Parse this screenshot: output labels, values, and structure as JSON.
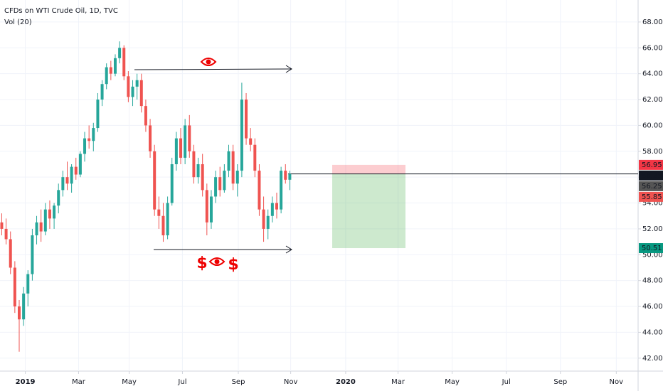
{
  "chart_data": {
    "type": "candlestick",
    "title": "CFDs on WTI Crude Oil, 1D, TVC",
    "subtitle": "Vol (20)",
    "up_color": "#26a69a",
    "down_color": "#ef5350",
    "x": [
      2,
      7,
      12,
      17,
      22,
      27,
      32,
      37,
      42,
      47,
      52,
      57,
      62,
      67,
      72,
      77,
      82,
      87,
      92,
      97,
      102,
      107,
      112,
      117,
      122,
      127,
      132,
      137,
      142,
      147,
      152,
      157,
      162,
      167,
      172,
      177,
      182,
      187,
      192,
      197,
      202,
      207,
      212,
      217,
      222,
      227,
      232,
      237,
      242,
      247,
      252,
      257,
      262,
      267,
      272,
      277,
      282,
      287,
      292,
      297,
      302,
      307,
      312,
      317,
      322,
      327,
      332
    ],
    "open": [
      52.5,
      52.0,
      51.2,
      49.0,
      46.0,
      45.0,
      47.0,
      48.5,
      51.5,
      52.5,
      51.8,
      53.5,
      52.8,
      53.8,
      55.0,
      56.0,
      55.5,
      56.8,
      56.2,
      57.8,
      59.0,
      58.8,
      59.8,
      62.0,
      63.2,
      64.5,
      64.0,
      65.2,
      66.0,
      63.8,
      62.2,
      63.0,
      63.5,
      61.5,
      60.0,
      58.0,
      53.5,
      53.0,
      51.5,
      54.0,
      57.0,
      59.0,
      57.5,
      60.0,
      58.0,
      56.0,
      57.0,
      55.0,
      52.5,
      54.5,
      56.0,
      55.0,
      56.5,
      58.0,
      55.5,
      56.5,
      62.0,
      59.0,
      58.5,
      56.5,
      53.5,
      52.0,
      53.0,
      54.0,
      53.5,
      56.5,
      55.8
    ],
    "high": [
      53.2,
      52.8,
      51.8,
      49.5,
      46.5,
      47.5,
      48.8,
      52.0,
      53.0,
      53.5,
      54.0,
      54.2,
      54.0,
      55.5,
      56.5,
      57.2,
      57.0,
      57.5,
      58.0,
      59.5,
      60.0,
      60.2,
      62.5,
      63.5,
      64.8,
      65.0,
      65.5,
      66.5,
      66.2,
      64.2,
      63.5,
      64.0,
      64.0,
      62.0,
      60.5,
      58.5,
      54.5,
      54.0,
      54.5,
      57.5,
      59.5,
      59.8,
      60.5,
      60.8,
      58.5,
      57.5,
      57.8,
      55.5,
      55.0,
      56.5,
      56.8,
      57.0,
      58.5,
      58.5,
      57.0,
      63.3,
      62.5,
      59.8,
      59.0,
      57.0,
      54.5,
      53.5,
      54.5,
      54.8,
      56.8,
      57.0,
      56.5
    ],
    "low": [
      51.5,
      50.8,
      48.5,
      45.5,
      42.5,
      44.5,
      46.0,
      48.0,
      50.8,
      51.0,
      51.5,
      52.0,
      52.0,
      53.2,
      54.5,
      55.0,
      54.8,
      55.8,
      56.0,
      57.2,
      58.2,
      58.0,
      59.5,
      61.5,
      62.8,
      63.5,
      63.8,
      64.8,
      63.5,
      61.8,
      61.5,
      62.0,
      61.0,
      59.5,
      57.5,
      53.0,
      52.0,
      51.0,
      51.2,
      53.8,
      56.5,
      57.0,
      57.0,
      57.5,
      55.5,
      55.5,
      54.5,
      51.5,
      52.0,
      54.0,
      54.5,
      54.8,
      56.0,
      55.0,
      54.5,
      56.0,
      58.5,
      58.0,
      56.0,
      53.0,
      51.0,
      51.2,
      52.5,
      52.8,
      53.2,
      55.5,
      55.0
    ],
    "close": [
      52.0,
      51.2,
      49.0,
      46.0,
      45.0,
      47.0,
      48.5,
      51.5,
      52.5,
      51.8,
      53.5,
      52.8,
      53.8,
      55.0,
      56.0,
      55.5,
      56.8,
      56.2,
      57.8,
      59.0,
      58.8,
      59.8,
      62.0,
      63.2,
      64.5,
      64.0,
      65.2,
      66.0,
      63.8,
      62.2,
      63.0,
      63.5,
      61.5,
      60.0,
      58.0,
      53.5,
      53.0,
      51.5,
      54.0,
      57.0,
      59.0,
      57.5,
      60.0,
      58.0,
      56.0,
      57.0,
      55.0,
      52.5,
      54.5,
      56.0,
      55.0,
      56.5,
      58.0,
      55.5,
      56.5,
      62.0,
      59.0,
      58.5,
      56.5,
      53.5,
      52.0,
      53.0,
      54.0,
      53.5,
      56.5,
      55.8,
      56.25
    ],
    "xlim": [
      0,
      731
    ],
    "xticks": [
      {
        "value": 29,
        "label": "2019"
      },
      {
        "value": 90,
        "label": "Mar"
      },
      {
        "value": 148,
        "label": "May"
      },
      {
        "value": 209,
        "label": "Jul"
      },
      {
        "value": 273,
        "label": "Sep"
      },
      {
        "value": 333,
        "label": "Nov"
      },
      {
        "value": 396,
        "label": "2020"
      },
      {
        "value": 456,
        "label": "Mar"
      },
      {
        "value": 518,
        "label": "May"
      },
      {
        "value": 580,
        "label": "Jul"
      },
      {
        "value": 642,
        "label": "Sep"
      },
      {
        "value": 706,
        "label": "Nov"
      }
    ],
    "ylim": [
      41.0,
      69.7
    ],
    "yticks": [
      {
        "value": 42,
        "label": "42.00"
      },
      {
        "value": 44,
        "label": "44.00"
      },
      {
        "value": 46,
        "label": "46.00"
      },
      {
        "value": 48,
        "label": "48.00"
      },
      {
        "value": 50,
        "label": "50.00"
      },
      {
        "value": 52,
        "label": "52.00"
      },
      {
        "value": 54,
        "label": "54.00"
      },
      {
        "value": 56,
        "label": "56.00"
      },
      {
        "value": 58,
        "label": "58.00"
      },
      {
        "value": 60,
        "label": "60.00"
      },
      {
        "value": 62,
        "label": "62.00"
      },
      {
        "value": 64,
        "label": "64.00"
      },
      {
        "value": 66,
        "label": "66.00"
      },
      {
        "value": 68,
        "label": "68.00"
      }
    ],
    "grid": true,
    "price_labels": [
      {
        "value": 56.95,
        "color": "#f23645"
      },
      {
        "value": 56.25,
        "color": "#131722"
      },
      {
        "value": 56.25,
        "color": "#555555"
      },
      {
        "value": 55.85,
        "color": "#ef5350"
      },
      {
        "value": 50.51,
        "color": "#089981"
      }
    ],
    "annotations": [
      "$",
      "$"
    ]
  }
}
